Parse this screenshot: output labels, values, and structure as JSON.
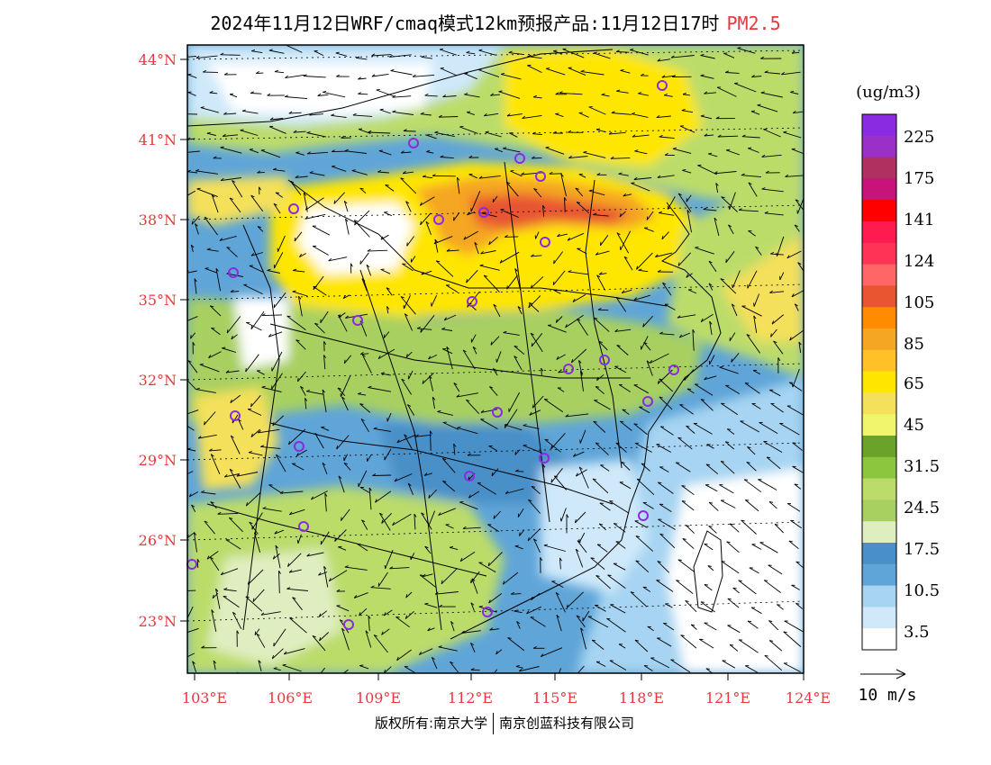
{
  "header": {
    "title": "2024年11月12日WRF/cmaq模式12km预报产品:11月12日17时",
    "pollutant": "PM2.5",
    "pollutant_color": "#e8383d"
  },
  "axes": {
    "lat_labels": [
      "44°N",
      "41°N",
      "38°N",
      "35°N",
      "32°N",
      "29°N",
      "26°N",
      "23°N"
    ],
    "lon_labels": [
      "103°E",
      "106°E",
      "109°E",
      "112°E",
      "115°E",
      "118°E",
      "121°E",
      "124°E"
    ],
    "label_color": "#e8383d"
  },
  "legend": {
    "unit": "(ug/m3)",
    "labels": [
      "225",
      "175",
      "141",
      "124",
      "105",
      "85",
      "65",
      "45",
      "31.5",
      "24.5",
      "17.5",
      "10.5",
      "3.5"
    ],
    "colors": [
      "#8a2be2",
      "#9b30c9",
      "#b03060",
      "#c8137a",
      "#ff0000",
      "#ff1a4f",
      "#ff3355",
      "#ff6666",
      "#e85530",
      "#ff8c00",
      "#f5a623",
      "#ffc125",
      "#ffe600",
      "#f4e05a",
      "#f0f56b",
      "#6aa329",
      "#8cc63f",
      "#bcdc6a",
      "#a8d060",
      "#dfeec0",
      "#4a90c8",
      "#5fa5d8",
      "#a6d4f2",
      "#cfe9fa",
      "#ffffff"
    ],
    "wind_ref_label": "10 m/s"
  },
  "footer": {
    "left": "版权所有:南京大学",
    "right": "南京创蓝科技有限公司"
  }
}
